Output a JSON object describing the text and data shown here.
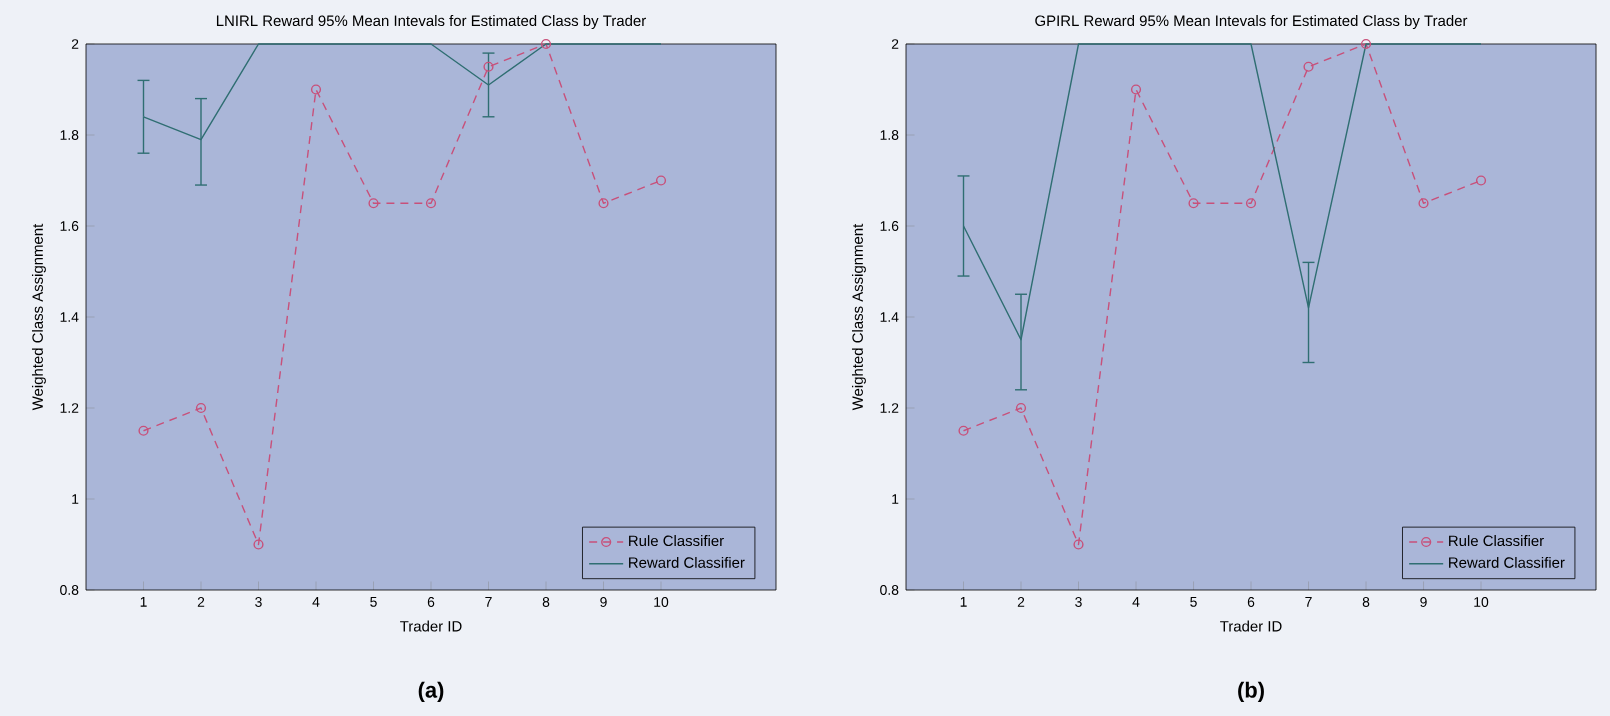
{
  "chart_data": [
    {
      "type": "line",
      "title": "LNIRL Reward  95% Mean Intevals for Estimated Class by Trader",
      "xlabel": "Trader ID",
      "ylabel": "Weighted Class Assignment",
      "x": [
        1,
        2,
        3,
        4,
        5,
        6,
        7,
        8,
        9,
        10
      ],
      "xlim": [
        0,
        12
      ],
      "xticks": [
        1,
        2,
        3,
        4,
        5,
        6,
        7,
        8,
        9,
        10
      ],
      "ylim": [
        0.8,
        2
      ],
      "yticks": [
        0.8,
        1,
        1.2,
        1.4,
        1.6,
        1.8,
        2
      ],
      "series": [
        {
          "name": "Rule Classifier",
          "color": "#c8507a",
          "values": [
            1.15,
            1.2,
            0.9,
            1.9,
            1.65,
            1.65,
            1.95,
            2,
            1.65,
            1.7
          ],
          "marker": "circle",
          "line_style": "dashed"
        },
        {
          "name": "Reward Classifier",
          "color": "#2f6e72",
          "values": [
            1.84,
            1.79,
            2,
            2,
            2,
            2,
            1.91,
            2,
            2,
            2
          ],
          "errors": [
            [
              1.76,
              1.92
            ],
            [
              1.69,
              1.88
            ],
            null,
            null,
            null,
            null,
            [
              1.84,
              1.98
            ],
            null,
            null,
            null
          ],
          "marker": "none",
          "line_style": "solid"
        }
      ],
      "legend": "bottom right",
      "grid": false,
      "annotations": [
        "(a)"
      ]
    },
    {
      "type": "line",
      "title": "GPIRL Reward  95% Mean Intevals for Estimated Class by Trader",
      "xlabel": "Trader ID",
      "ylabel": "Weighted Class Assignment",
      "x": [
        1,
        2,
        3,
        4,
        5,
        6,
        7,
        8,
        9,
        10
      ],
      "xlim": [
        0,
        12
      ],
      "xticks": [
        1,
        2,
        3,
        4,
        5,
        6,
        7,
        8,
        9,
        10
      ],
      "ylim": [
        0.8,
        2
      ],
      "yticks": [
        0.8,
        1,
        1.2,
        1.4,
        1.6,
        1.8,
        2
      ],
      "series": [
        {
          "name": "Rule Classifier",
          "color": "#c8507a",
          "values": [
            1.15,
            1.2,
            0.9,
            1.9,
            1.65,
            1.65,
            1.95,
            2,
            1.65,
            1.7
          ],
          "marker": "circle",
          "line_style": "dashed"
        },
        {
          "name": "Reward Classifier",
          "color": "#2f6e72",
          "values": [
            1.6,
            1.35,
            2,
            2,
            2,
            2,
            1.42,
            2,
            2,
            2
          ],
          "errors": [
            [
              1.49,
              1.71
            ],
            [
              1.24,
              1.45
            ],
            null,
            null,
            null,
            null,
            [
              1.3,
              1.52
            ],
            null,
            null,
            null
          ],
          "marker": "none",
          "line_style": "solid"
        }
      ],
      "legend": "bottom right",
      "grid": false,
      "annotations": [
        "(b)"
      ]
    }
  ]
}
